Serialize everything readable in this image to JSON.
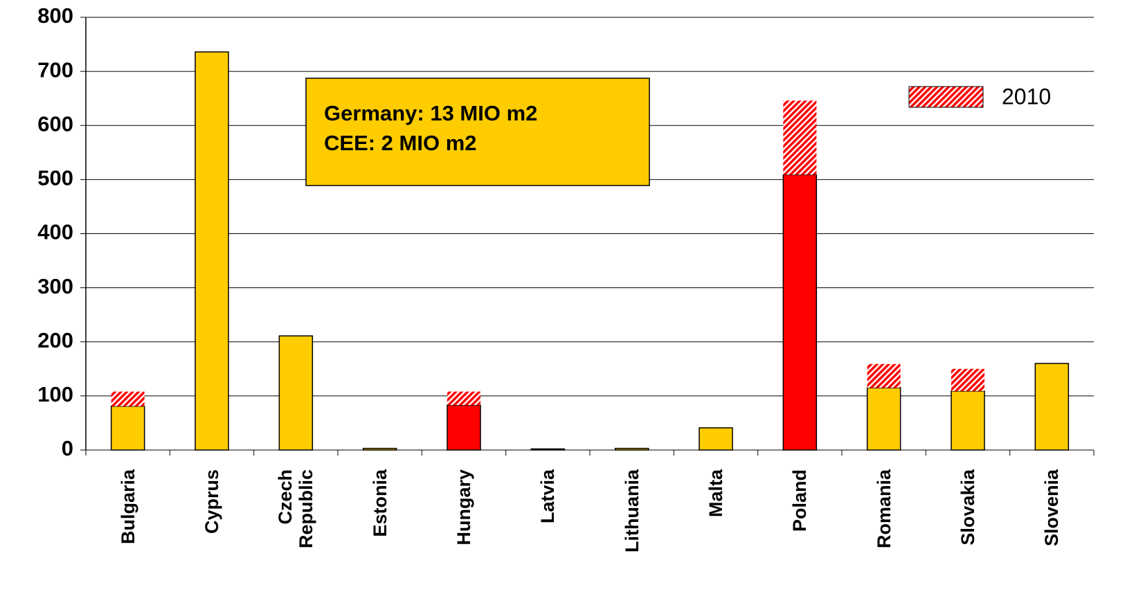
{
  "chart_data": {
    "type": "bar",
    "stacked": true,
    "categories": [
      "Bulgaria",
      "Cyprus",
      "Czech Republic",
      "Estonia",
      "Hungary",
      "Latvia",
      "Lithuania",
      "Malta",
      "Poland",
      "Romania",
      "Slovakia",
      "Slovenia"
    ],
    "series": [
      {
        "colors": [
          "#ffcc00",
          "#ffcc00",
          "#ffcc00",
          "#ffcc00",
          "#ff0000",
          "#ffcc00",
          "#ffcc00",
          "#ffcc00",
          "#ff0000",
          "#ffcc00",
          "#ffcc00",
          "#ffcc00"
        ],
        "values": [
          81,
          736,
          211,
          3,
          83,
          2,
          3,
          41,
          509,
          115,
          109,
          160
        ]
      },
      {
        "name": "2010",
        "color": "#ff0000",
        "pattern": "hatch",
        "values": [
          27,
          null,
          null,
          null,
          25,
          null,
          null,
          null,
          137,
          44,
          41,
          null
        ]
      }
    ],
    "annotation": [
      "Germany: 13 MIO m2",
      "CEE: 2 MIO m2"
    ],
    "ylim": [
      0,
      800
    ],
    "yticks": [
      0,
      100,
      200,
      300,
      400,
      500,
      600,
      700,
      800
    ],
    "grid": true,
    "legend": "top-right"
  }
}
